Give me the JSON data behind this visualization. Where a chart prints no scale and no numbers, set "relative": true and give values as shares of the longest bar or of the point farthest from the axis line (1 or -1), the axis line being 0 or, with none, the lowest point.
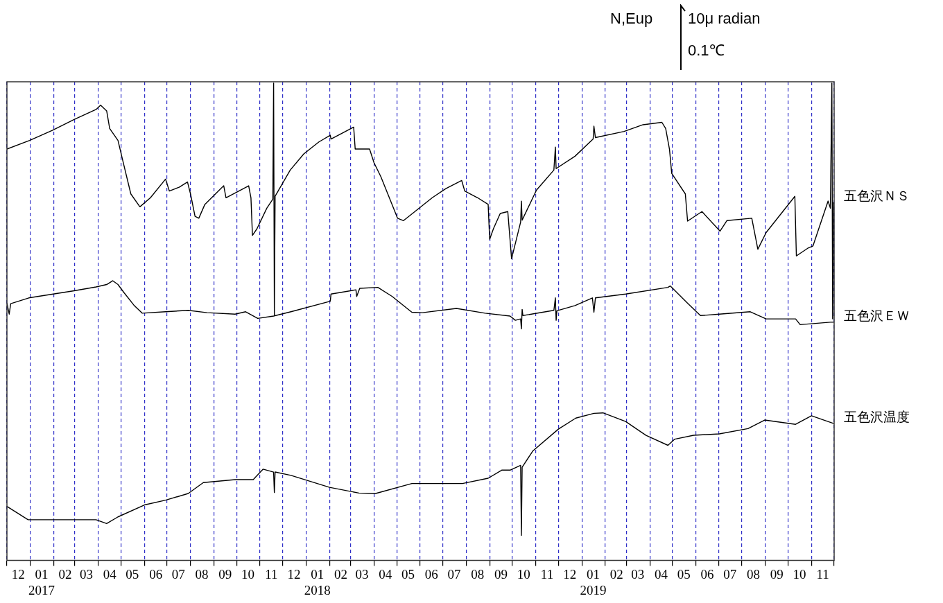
{
  "chart_data": {
    "type": "line",
    "relative": true,
    "grid": "x",
    "legend": false,
    "marker": "none",
    "line_style": "solid",
    "annotations": [
      "N,Eup",
      "10μ radian",
      "0.1℃"
    ],
    "xlim": [
      "2016-12-01",
      "2019-12-01"
    ],
    "xticks": [
      {
        "value": "2016-12-01",
        "label": null
      },
      {
        "value": "2016-12-16",
        "label": "12"
      },
      {
        "value": "2017-01-01",
        "label": null
      },
      {
        "value": "2017-01-16",
        "label": "01\n2017"
      },
      {
        "value": "2017-02-01",
        "label": null
      },
      {
        "value": "2017-02-16",
        "label": "02"
      },
      {
        "value": "2017-03-01",
        "label": null
      },
      {
        "value": "2017-03-16",
        "label": "03"
      },
      {
        "value": "2017-04-01",
        "label": null
      },
      {
        "value": "2017-04-16",
        "label": "04"
      },
      {
        "value": "2017-05-01",
        "label": null
      },
      {
        "value": "2017-05-16",
        "label": "05"
      },
      {
        "value": "2017-06-01",
        "label": null
      },
      {
        "value": "2017-06-16",
        "label": "06"
      },
      {
        "value": "2017-07-01",
        "label": null
      },
      {
        "value": "2017-07-16",
        "label": "07"
      },
      {
        "value": "2017-08-01",
        "label": null
      },
      {
        "value": "2017-08-16",
        "label": "08"
      },
      {
        "value": "2017-09-01",
        "label": null
      },
      {
        "value": "2017-09-16",
        "label": "09"
      },
      {
        "value": "2017-10-01",
        "label": null
      },
      {
        "value": "2017-10-16",
        "label": "10"
      },
      {
        "value": "2017-11-01",
        "label": null
      },
      {
        "value": "2017-11-16",
        "label": "11"
      },
      {
        "value": "2017-12-01",
        "label": null
      },
      {
        "value": "2017-12-16",
        "label": "12"
      },
      {
        "value": "2018-01-01",
        "label": null
      },
      {
        "value": "2018-01-16",
        "label": "01\n2018"
      },
      {
        "value": "2018-02-01",
        "label": null
      },
      {
        "value": "2018-02-16",
        "label": "02"
      },
      {
        "value": "2018-03-01",
        "label": null
      },
      {
        "value": "2018-03-16",
        "label": "03"
      },
      {
        "value": "2018-04-01",
        "label": null
      },
      {
        "value": "2018-04-16",
        "label": "04"
      },
      {
        "value": "2018-05-01",
        "label": null
      },
      {
        "value": "2018-05-16",
        "label": "05"
      },
      {
        "value": "2018-06-01",
        "label": null
      },
      {
        "value": "2018-06-16",
        "label": "06"
      },
      {
        "value": "2018-07-01",
        "label": null
      },
      {
        "value": "2018-07-16",
        "label": "07"
      },
      {
        "value": "2018-08-01",
        "label": null
      },
      {
        "value": "2018-08-16",
        "label": "08"
      },
      {
        "value": "2018-09-01",
        "label": null
      },
      {
        "value": "2018-09-16",
        "label": "09"
      },
      {
        "value": "2018-10-01",
        "label": null
      },
      {
        "value": "2018-10-16",
        "label": "10"
      },
      {
        "value": "2018-11-01",
        "label": null
      },
      {
        "value": "2018-11-16",
        "label": "11"
      },
      {
        "value": "2018-12-01",
        "label": null
      },
      {
        "value": "2018-12-16",
        "label": "12"
      },
      {
        "value": "2019-01-01",
        "label": null
      },
      {
        "value": "2019-01-16",
        "label": "01\n2019"
      },
      {
        "value": "2019-02-01",
        "label": null
      },
      {
        "value": "2019-02-16",
        "label": "02"
      },
      {
        "value": "2019-03-01",
        "label": null
      },
      {
        "value": "2019-03-16",
        "label": "03"
      },
      {
        "value": "2019-04-01",
        "label": null
      },
      {
        "value": "2019-04-16",
        "label": "04"
      },
      {
        "value": "2019-05-01",
        "label": null
      },
      {
        "value": "2019-05-16",
        "label": "05"
      },
      {
        "value": "2019-06-01",
        "label": null
      },
      {
        "value": "2019-06-16",
        "label": "06"
      },
      {
        "value": "2019-07-01",
        "label": null
      },
      {
        "value": "2019-07-16",
        "label": "07"
      },
      {
        "value": "2019-08-01",
        "label": null
      },
      {
        "value": "2019-08-16",
        "label": "08"
      },
      {
        "value": "2019-09-01",
        "label": null
      },
      {
        "value": "2019-09-16",
        "label": "09"
      },
      {
        "value": "2019-10-01",
        "label": null
      },
      {
        "value": "2019-10-16",
        "label": "10"
      },
      {
        "value": "2019-11-01",
        "label": null
      },
      {
        "value": "2019-11-16",
        "label": "11"
      },
      {
        "value": "2019-12-01",
        "label": null
      }
    ],
    "series": [
      {
        "name": "五色沢ＮＳ",
        "color": "#000000",
        "x": [
          "2016-12-01",
          "2016-12-31",
          "2017-01-30",
          "2017-02-28",
          "2017-03-29",
          "2017-04-04",
          "2017-04-12",
          "2017-04-16",
          "2017-04-27",
          "2017-05-03",
          "2017-05-14",
          "2017-05-26",
          "2017-06-09",
          "2017-06-29",
          "2017-07-04",
          "2017-07-17",
          "2017-07-28",
          "2017-08-01",
          "2017-08-07",
          "2017-08-12",
          "2017-08-20",
          "2017-09-10",
          "2017-09-14",
          "2017-09-17",
          "2017-10-04",
          "2017-10-17",
          "2017-10-20",
          "2017-10-22",
          "2017-10-28",
          "2017-11-10",
          "2017-11-18",
          "2017-11-19",
          "2017-11-20",
          "2017-11-21",
          "2017-12-11",
          "2017-12-29",
          "2018-01-18",
          "2018-02-02",
          "2018-02-03",
          "2018-03-05",
          "2018-03-07",
          "2018-03-26",
          "2018-04-01",
          "2018-04-10",
          "2018-04-27",
          "2018-05-02",
          "2018-05-10",
          "2018-05-25",
          "2018-06-17",
          "2018-07-05",
          "2018-07-26",
          "2018-07-30",
          "2018-08-16",
          "2018-08-30",
          "2018-09-01",
          "2018-09-06",
          "2018-09-15",
          "2018-09-25",
          "2018-09-30",
          "2018-10-12",
          "2018-10-13",
          "2018-10-14",
          "2018-11-02",
          "2018-11-25",
          "2018-11-27",
          "2018-11-28",
          "2018-12-23",
          "2019-01-16",
          "2019-01-17",
          "2019-01-19",
          "2019-02-26",
          "2019-03-23",
          "2019-04-17",
          "2019-04-22",
          "2019-04-27",
          "2019-04-30",
          "2019-05-18",
          "2019-05-21",
          "2019-06-09",
          "2019-07-03",
          "2019-07-12",
          "2019-08-14",
          "2019-08-22",
          "2019-09-02",
          "2019-10-10",
          "2019-10-12",
          "2019-10-27",
          "2019-11-03",
          "2019-11-23",
          "2019-11-26",
          "2019-11-28",
          "2019-11-29",
          "2019-11-30"
        ],
        "values": [
          0.862,
          0.88,
          0.901,
          0.924,
          0.945,
          0.954,
          0.942,
          0.905,
          0.88,
          0.84,
          0.768,
          0.741,
          0.76,
          0.799,
          0.774,
          0.782,
          0.793,
          0.768,
          0.721,
          0.717,
          0.746,
          0.779,
          0.785,
          0.76,
          0.774,
          0.785,
          0.76,
          0.681,
          0.695,
          0.738,
          0.757,
          1.0,
          0.513,
          0.763,
          0.818,
          0.852,
          0.877,
          0.891,
          0.883,
          0.908,
          0.862,
          0.862,
          0.833,
          0.804,
          0.737,
          0.717,
          0.712,
          0.731,
          0.76,
          0.779,
          0.796,
          0.774,
          0.76,
          0.746,
          0.673,
          0.695,
          0.727,
          0.731,
          0.632,
          0.709,
          0.753,
          0.713,
          0.776,
          0.818,
          0.866,
          0.821,
          0.847,
          0.883,
          0.91,
          0.886,
          0.899,
          0.913,
          0.918,
          0.905,
          0.862,
          0.811,
          0.768,
          0.711,
          0.731,
          0.69,
          0.712,
          0.717,
          0.652,
          0.687,
          0.763,
          0.638,
          0.654,
          0.659,
          0.753,
          0.738,
          1.0,
          0.506,
          0.75
        ]
      },
      {
        "name": "五色沢ＥＷ",
        "color": "#000000",
        "x": [
          "2016-12-01",
          "2016-12-04",
          "2016-12-06",
          "2016-12-30",
          "2017-02-28",
          "2017-03-29",
          "2017-04-12",
          "2017-04-20",
          "2017-04-27",
          "2017-05-05",
          "2017-05-18",
          "2017-05-29",
          "2017-06-29",
          "2017-07-29",
          "2017-08-23",
          "2017-09-29",
          "2017-10-13",
          "2017-10-29",
          "2017-11-19",
          "2017-12-12",
          "2018-02-02",
          "2018-02-03",
          "2018-03-08",
          "2018-03-09",
          "2018-03-13",
          "2018-04-06",
          "2018-04-25",
          "2018-05-21",
          "2018-06-04",
          "2018-07-19",
          "2018-08-26",
          "2018-09-28",
          "2018-10-05",
          "2018-10-12",
          "2018-10-13",
          "2018-10-14",
          "2018-10-15",
          "2018-11-25",
          "2018-11-27",
          "2018-11-28",
          "2018-11-29",
          "2018-12-23",
          "2019-01-15",
          "2019-01-17",
          "2019-01-19",
          "2019-02-28",
          "2019-04-25",
          "2019-04-28",
          "2019-05-21",
          "2019-06-07",
          "2019-07-02",
          "2019-08-12",
          "2019-09-02",
          "2019-10-11",
          "2019-10-17",
          "2019-11-26",
          "2019-11-30"
        ],
        "values": [
          0.539,
          0.516,
          0.538,
          0.55,
          0.565,
          0.573,
          0.578,
          0.586,
          0.578,
          0.561,
          0.535,
          0.518,
          0.521,
          0.524,
          0.519,
          0.516,
          0.521,
          0.507,
          0.512,
          0.521,
          0.543,
          0.558,
          0.567,
          0.553,
          0.57,
          0.572,
          0.553,
          0.52,
          0.519,
          0.528,
          0.518,
          0.512,
          0.503,
          0.506,
          0.485,
          0.526,
          0.513,
          0.524,
          0.55,
          0.503,
          0.523,
          0.534,
          0.55,
          0.52,
          0.55,
          0.558,
          0.572,
          0.575,
          0.539,
          0.513,
          0.516,
          0.521,
          0.506,
          0.506,
          0.494,
          0.499,
          0.499
        ]
      },
      {
        "name": "五色沢温度",
        "color": "#000000",
        "x": [
          "2016-12-01",
          "2016-12-29",
          "2017-03-29",
          "2017-04-12",
          "2017-04-27",
          "2017-06-01",
          "2017-06-29",
          "2017-07-29",
          "2017-08-18",
          "2017-09-29",
          "2017-10-23",
          "2017-11-05",
          "2017-11-19",
          "2017-11-20",
          "2017-11-21",
          "2017-12-12",
          "2018-02-01",
          "2018-03-12",
          "2018-04-03",
          "2018-05-21",
          "2018-07-27",
          "2018-08-30",
          "2018-09-17",
          "2018-09-28",
          "2018-10-12",
          "2018-10-13",
          "2018-10-14",
          "2018-10-28",
          "2018-12-01",
          "2018-12-24",
          "2019-01-17",
          "2019-01-29",
          "2019-02-28",
          "2019-03-27",
          "2019-04-25",
          "2019-05-04",
          "2019-05-29",
          "2019-07-02",
          "2019-08-09",
          "2019-08-31",
          "2019-10-11",
          "2019-11-01",
          "2019-11-30"
        ],
        "values": [
          0.113,
          0.085,
          0.085,
          0.077,
          0.091,
          0.116,
          0.126,
          0.14,
          0.163,
          0.169,
          0.169,
          0.191,
          0.185,
          0.142,
          0.185,
          0.178,
          0.153,
          0.141,
          0.14,
          0.161,
          0.161,
          0.172,
          0.189,
          0.189,
          0.199,
          0.052,
          0.195,
          0.229,
          0.275,
          0.298,
          0.308,
          0.309,
          0.291,
          0.262,
          0.241,
          0.254,
          0.262,
          0.265,
          0.276,
          0.294,
          0.285,
          0.303,
          0.287
        ]
      }
    ]
  }
}
